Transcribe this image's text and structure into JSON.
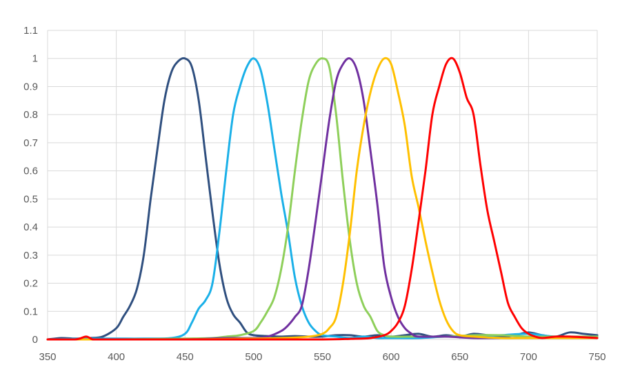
{
  "chart_data": {
    "type": "line",
    "title": "",
    "xlabel": "",
    "ylabel": "",
    "xlim": [
      350,
      750
    ],
    "ylim": [
      0,
      1.1
    ],
    "grid": true,
    "legend": "none",
    "x_ticks": [
      "350",
      "400",
      "450",
      "500",
      "550",
      "600",
      "650",
      "700",
      "750"
    ],
    "x_tick_values": [
      350,
      400,
      450,
      500,
      550,
      600,
      650,
      700,
      750
    ],
    "y_ticks": [
      "0",
      "0.1",
      "0.2",
      "0.3",
      "0.4",
      "0.5",
      "0.6",
      "0.7",
      "0.8",
      "0.9",
      "1",
      "1.1"
    ],
    "y_tick_values": [
      0,
      0.1,
      0.2,
      0.3,
      0.4,
      0.5,
      0.6,
      0.7,
      0.8,
      0.9,
      1.0,
      1.1
    ],
    "series": [
      {
        "color": "#2f4f7f",
        "x": [
          350,
          360,
          370,
          380,
          390,
          400,
          405,
          410,
          415,
          420,
          425,
          430,
          435,
          440,
          445,
          450,
          455,
          460,
          465,
          470,
          475,
          480,
          485,
          490,
          495,
          500,
          510,
          520,
          530,
          540,
          550,
          560,
          570,
          580,
          590,
          600,
          610,
          620,
          630,
          640,
          650,
          660,
          670,
          680,
          690,
          700,
          710,
          720,
          730,
          740,
          750
        ],
        "y": [
          0.0,
          0.005,
          0.003,
          0.005,
          0.01,
          0.04,
          0.08,
          0.12,
          0.18,
          0.3,
          0.5,
          0.68,
          0.85,
          0.95,
          0.99,
          1.0,
          0.97,
          0.85,
          0.65,
          0.45,
          0.27,
          0.15,
          0.09,
          0.06,
          0.025,
          0.015,
          0.012,
          0.01,
          0.012,
          0.01,
          0.01,
          0.015,
          0.015,
          0.01,
          0.015,
          0.01,
          0.015,
          0.02,
          0.01,
          0.015,
          0.01,
          0.02,
          0.015,
          0.01,
          0.015,
          0.025,
          0.015,
          0.01,
          0.025,
          0.02,
          0.015
        ]
      },
      {
        "color": "#1ab0e8",
        "x": [
          350,
          380,
          400,
          420,
          440,
          450,
          455,
          460,
          465,
          470,
          475,
          480,
          485,
          490,
          495,
          500,
          505,
          510,
          515,
          520,
          525,
          530,
          535,
          540,
          545,
          550,
          560,
          570,
          580,
          590,
          600,
          620,
          640,
          660,
          680,
          700,
          720,
          750
        ],
        "y": [
          0.0,
          0.003,
          0.003,
          0.003,
          0.005,
          0.02,
          0.06,
          0.11,
          0.14,
          0.2,
          0.38,
          0.6,
          0.8,
          0.9,
          0.97,
          1.0,
          0.96,
          0.84,
          0.68,
          0.52,
          0.38,
          0.22,
          0.12,
          0.06,
          0.03,
          0.015,
          0.01,
          0.005,
          0.01,
          0.005,
          0.005,
          0.005,
          0.01,
          0.01,
          0.015,
          0.02,
          0.01,
          0.01
        ]
      },
      {
        "color": "#8ecf5a",
        "x": [
          350,
          400,
          450,
          470,
          480,
          490,
          500,
          505,
          510,
          515,
          520,
          525,
          530,
          535,
          540,
          545,
          550,
          555,
          560,
          565,
          570,
          575,
          580,
          585,
          590,
          595,
          600,
          620,
          640,
          660,
          680,
          700,
          720,
          750
        ],
        "y": [
          0.0,
          0.0,
          0.003,
          0.005,
          0.01,
          0.015,
          0.03,
          0.06,
          0.1,
          0.15,
          0.25,
          0.4,
          0.6,
          0.78,
          0.92,
          0.98,
          1.0,
          0.97,
          0.8,
          0.56,
          0.35,
          0.2,
          0.12,
          0.08,
          0.03,
          0.015,
          0.01,
          0.01,
          0.01,
          0.015,
          0.015,
          0.01,
          0.01,
          0.01
        ]
      },
      {
        "color": "#7030a0",
        "x": [
          350,
          400,
          450,
          480,
          500,
          510,
          520,
          525,
          530,
          535,
          540,
          545,
          550,
          555,
          560,
          565,
          570,
          575,
          580,
          585,
          590,
          595,
          600,
          605,
          610,
          615,
          620,
          640,
          660,
          680,
          700,
          720,
          750
        ],
        "y": [
          0.0,
          0.0,
          0.0,
          0.005,
          0.005,
          0.01,
          0.03,
          0.05,
          0.08,
          0.12,
          0.25,
          0.42,
          0.6,
          0.78,
          0.92,
          0.98,
          1.0,
          0.96,
          0.85,
          0.67,
          0.48,
          0.26,
          0.15,
          0.08,
          0.04,
          0.02,
          0.01,
          0.01,
          0.005,
          0.005,
          0.005,
          0.005,
          0.005
        ]
      },
      {
        "color": "#ffc000",
        "x": [
          350,
          400,
          450,
          500,
          520,
          540,
          550,
          555,
          560,
          565,
          570,
          575,
          580,
          585,
          590,
          595,
          600,
          605,
          610,
          615,
          620,
          625,
          630,
          635,
          640,
          645,
          650,
          660,
          680,
          700,
          720,
          750
        ],
        "y": [
          0.0,
          0.0,
          0.0,
          0.003,
          0.005,
          0.01,
          0.02,
          0.04,
          0.08,
          0.2,
          0.38,
          0.6,
          0.76,
          0.88,
          0.96,
          1.0,
          0.98,
          0.88,
          0.76,
          0.58,
          0.47,
          0.35,
          0.24,
          0.14,
          0.07,
          0.03,
          0.015,
          0.01,
          0.005,
          0.005,
          0.005,
          0.005
        ]
      },
      {
        "color": "#ff0000",
        "x": [
          350,
          370,
          378,
          383,
          390,
          400,
          450,
          500,
          550,
          570,
          585,
          595,
          600,
          605,
          610,
          615,
          620,
          625,
          630,
          635,
          640,
          645,
          650,
          655,
          660,
          665,
          670,
          675,
          680,
          685,
          690,
          695,
          700,
          705,
          710,
          720,
          730,
          750
        ],
        "y": [
          0.0,
          0.0,
          0.01,
          0.0,
          0.0,
          0.0,
          0.0,
          0.0,
          0.0,
          0.002,
          0.005,
          0.015,
          0.03,
          0.06,
          0.12,
          0.25,
          0.42,
          0.6,
          0.8,
          0.9,
          0.98,
          1.0,
          0.95,
          0.86,
          0.8,
          0.62,
          0.46,
          0.35,
          0.24,
          0.13,
          0.08,
          0.04,
          0.02,
          0.01,
          0.005,
          0.01,
          0.01,
          0.005
        ]
      }
    ]
  }
}
